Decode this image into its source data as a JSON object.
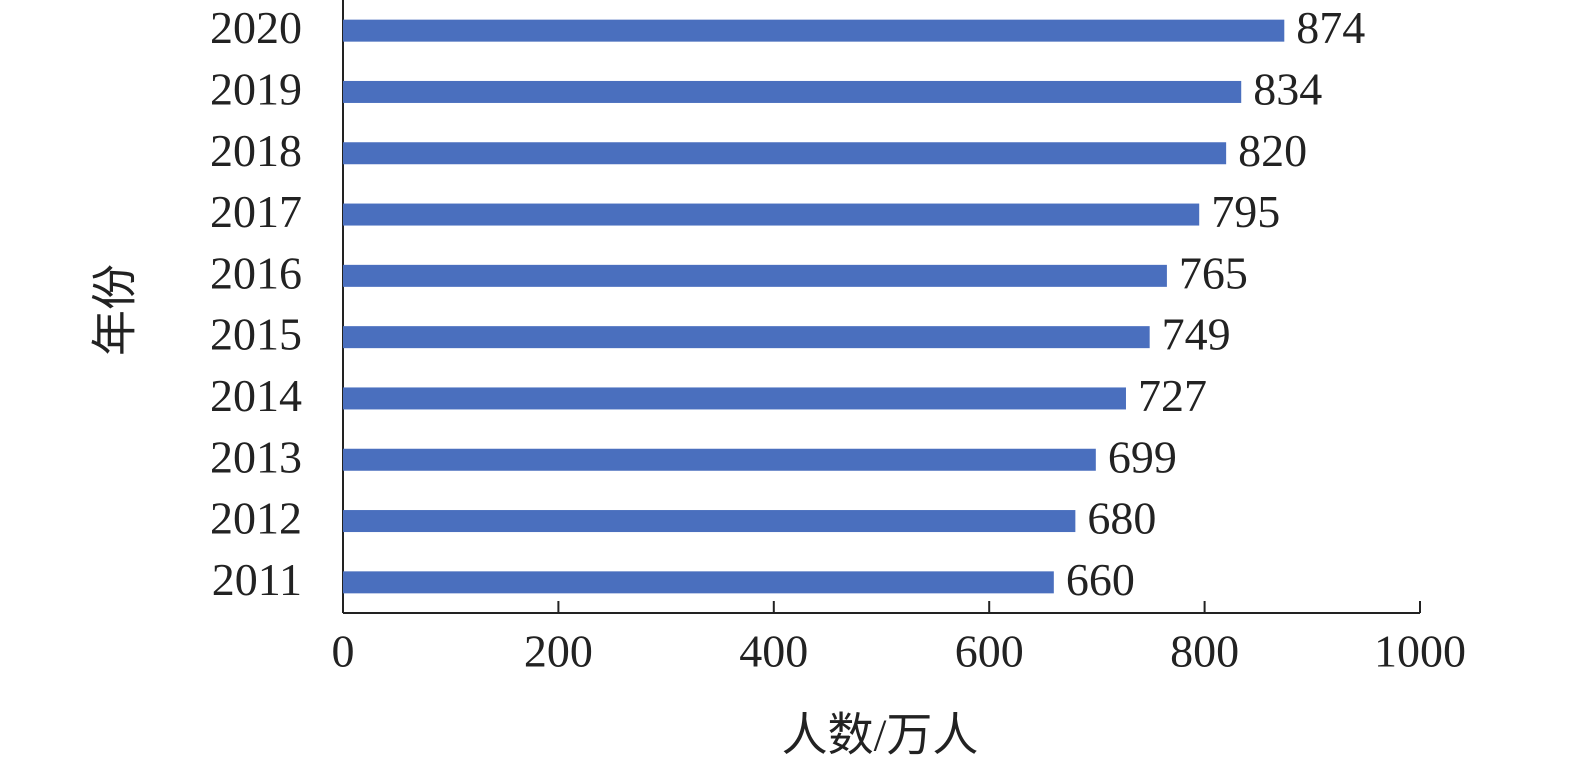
{
  "chart_data": {
    "type": "hbar",
    "categories": [
      "2011",
      "2012",
      "2013",
      "2014",
      "2015",
      "2016",
      "2017",
      "2018",
      "2019",
      "2020"
    ],
    "values": [
      660,
      680,
      699,
      727,
      749,
      765,
      795,
      820,
      834,
      874
    ],
    "color": "#4a6fbe",
    "xlim": [
      0,
      1000
    ],
    "xticks": [
      0,
      200,
      400,
      600,
      800,
      1000
    ],
    "x_label": "人数/万人",
    "y_label": "年份"
  }
}
